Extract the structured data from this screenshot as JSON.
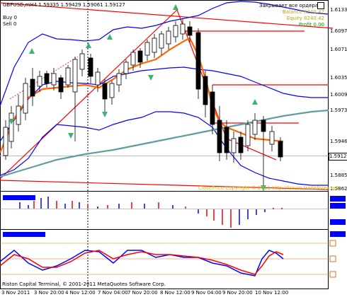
{
  "header": {
    "symbol_line": "GBPUSD,mH4  1.59335 1.59429 1.59061 1.59127",
    "buy_line": "Buy 0",
    "sell_line": "Sell 0"
  },
  "ea_panel": {
    "close_all_label": "Закрывает все ордера",
    "balance": "Balance 8240.42",
    "equity": "Equity 8240.42",
    "profit": "Profit 0.00"
  },
  "price_axis": {
    "labels": [
      "1.61335",
      "1.60970",
      "1.60715",
      "1.60350",
      "1.60095",
      "1.59730",
      "1.59465",
      "1.59127",
      "1.58855",
      "1.58620"
    ],
    "current_price": "1.59127"
  },
  "time_axis": {
    "labels": [
      "3 Nov 2011",
      "3 Nov 20:00",
      "4 Nov 12:00",
      "7 Nov 04:00",
      "7 Nov 20:00",
      "8 Nov 12:00",
      "9 Nov 04:00",
      "9 Nov 20:00",
      "10 Nov 12:00"
    ]
  },
  "watermark": "ClosePrice Copyright © 2011  http://forum.tradeforex.net",
  "footer": "Riston Capital Terminal, © 2001-2011 MetaQuotes Software Corp.",
  "colors": {
    "bull": "#ffffff",
    "bear": "#000000",
    "ma_fast": "#ff6600",
    "ma_slow": "#5f9ea0",
    "band": "#0000ff",
    "trend": "#ff0000",
    "arrow": "#3cb371"
  }
}
